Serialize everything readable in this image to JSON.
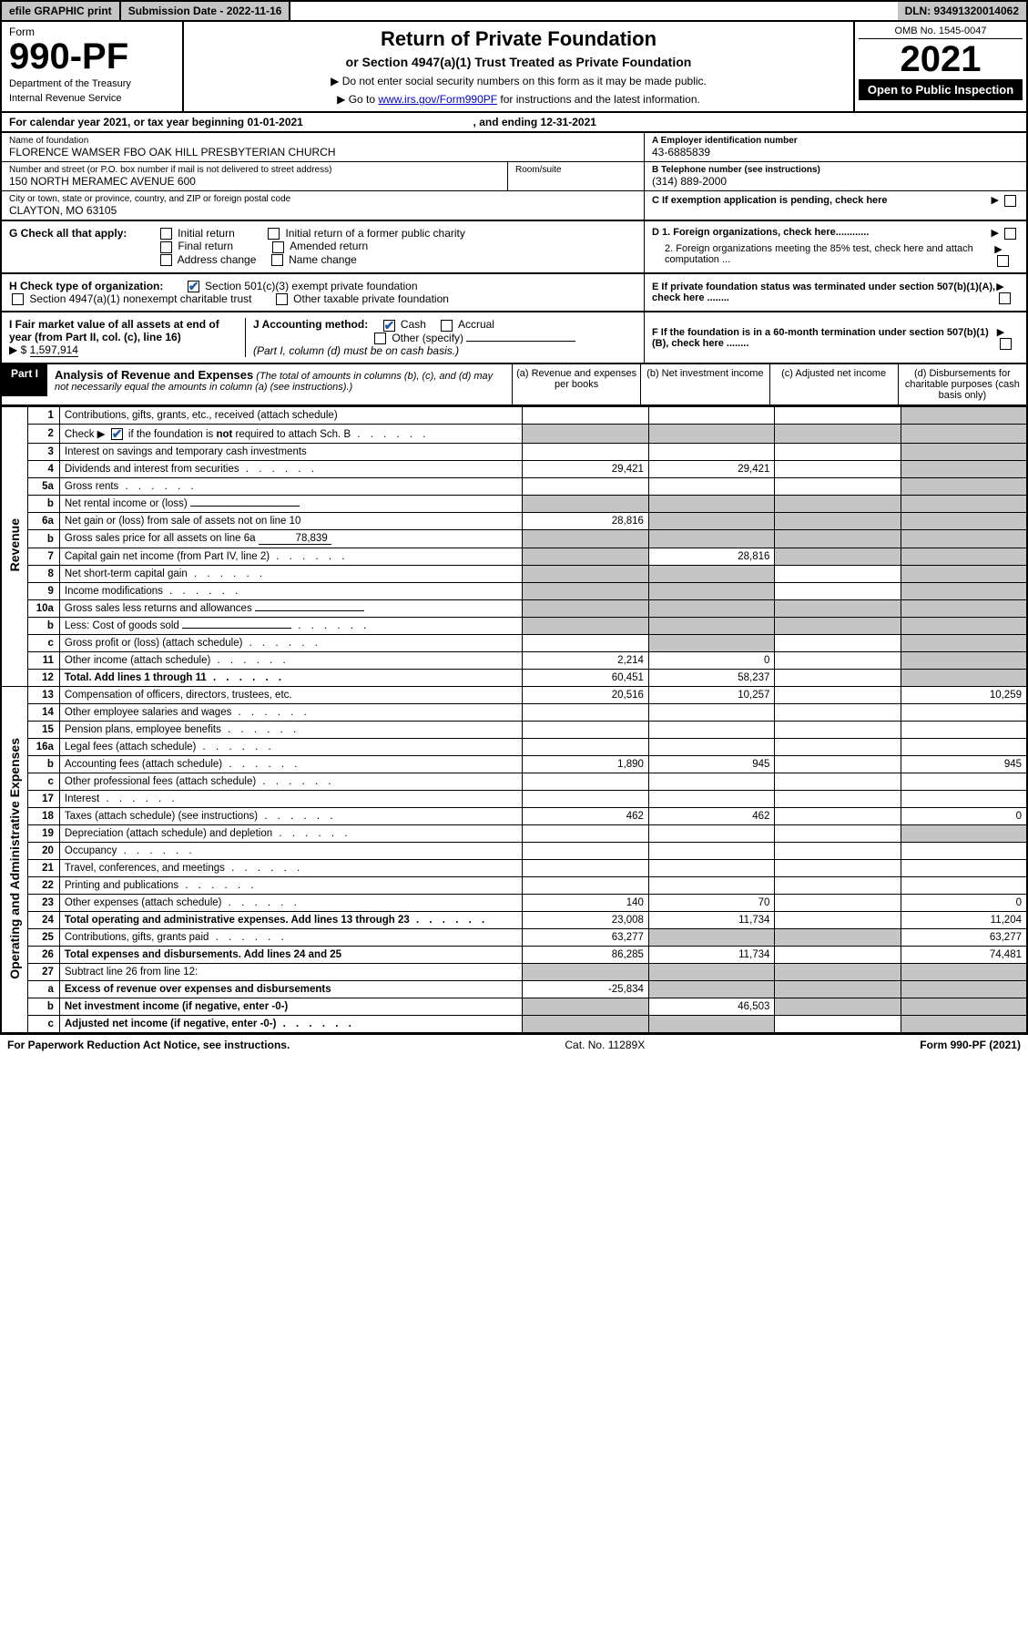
{
  "topbar": {
    "efile": "efile GRAPHIC print",
    "subdate_label": "Submission Date - 2022-11-16",
    "dln": "DLN: 93491320014062"
  },
  "header": {
    "form_prefix": "Form",
    "form_number": "990-PF",
    "dept1": "Department of the Treasury",
    "dept2": "Internal Revenue Service",
    "title": "Return of Private Foundation",
    "subtitle": "or Section 4947(a)(1) Trust Treated as Private Foundation",
    "instr1": "▶ Do not enter social security numbers on this form as it may be made public.",
    "instr2_pre": "▶ Go to ",
    "instr2_link": "www.irs.gov/Form990PF",
    "instr2_post": " for instructions and the latest information.",
    "omb": "OMB No. 1545-0047",
    "year": "2021",
    "open_public": "Open to Public Inspection"
  },
  "caly": {
    "pre": "For calendar year 2021, or tax year beginning ",
    "begin": "01-01-2021",
    "mid": ", and ending ",
    "end": "12-31-2021"
  },
  "info": {
    "name_lbl": "Name of foundation",
    "name_val": "FLORENCE WAMSER FBO OAK HILL PRESBYTERIAN CHURCH",
    "addr_lbl": "Number and street (or P.O. box number if mail is not delivered to street address)",
    "addr_val": "150 NORTH MERAMEC AVENUE 600",
    "room_lbl": "Room/suite",
    "city_lbl": "City or town, state or province, country, and ZIP or foreign postal code",
    "city_val": "CLAYTON, MO  63105",
    "ein_lbl": "A Employer identification number",
    "ein_val": "43-6885839",
    "tel_lbl": "B Telephone number (see instructions)",
    "tel_val": "(314) 889-2000",
    "c_lbl": "C If exemption application is pending, check here"
  },
  "g": {
    "lbl": "G Check all that apply:",
    "opts": [
      "Initial return",
      "Final return",
      "Address change",
      "Initial return of a former public charity",
      "Amended return",
      "Name change"
    ]
  },
  "h": {
    "lbl": "H Check type of organization:",
    "opt1": "Section 501(c)(3) exempt private foundation",
    "opt2": "Section 4947(a)(1) nonexempt charitable trust",
    "opt3": "Other taxable private foundation"
  },
  "i": {
    "lbl": "I Fair market value of all assets at end of year (from Part II, col. (c), line 16)",
    "arrow": "▶ $",
    "val": "1,597,914"
  },
  "j": {
    "lbl": "J Accounting method:",
    "cash": "Cash",
    "accrual": "Accrual",
    "other": "Other (specify)",
    "note": "(Part I, column (d) must be on cash basis.)"
  },
  "d": {
    "d1": "D 1. Foreign organizations, check here............",
    "d2": "2. Foreign organizations meeting the 85% test, check here and attach computation ..."
  },
  "e": {
    "lbl": "E  If private foundation status was terminated under section 507(b)(1)(A), check here ........"
  },
  "f": {
    "lbl": "F  If the foundation is in a 60-month termination under section 507(b)(1)(B), check here ........"
  },
  "part1": {
    "label": "Part I",
    "title": "Analysis of Revenue and Expenses",
    "note": "(The total of amounts in columns (b), (c), and (d) may not necessarily equal the amounts in column (a) (see instructions).)",
    "cols": {
      "a": "(a)  Revenue and expenses per books",
      "b": "(b)  Net investment income",
      "c": "(c)  Adjusted net income",
      "d": "(d)  Disbursements for charitable purposes (cash basis only)"
    }
  },
  "sides": {
    "revenue": "Revenue",
    "opex": "Operating and Administrative Expenses"
  },
  "rows": [
    {
      "ln": "1",
      "desc": "Contributions, gifts, grants, etc., received (attach schedule)",
      "a": "",
      "b": "",
      "c": "",
      "d": "",
      "dgrey": true
    },
    {
      "ln": "2",
      "desc": "Check ▶ ☑ if the foundation is not required to attach Sch. B",
      "dots": true,
      "a": "",
      "b": "",
      "c": "",
      "d": "",
      "agrey": true,
      "bgrey": true,
      "cgrey": true,
      "dgrey": true,
      "checkblue": true
    },
    {
      "ln": "3",
      "desc": "Interest on savings and temporary cash investments",
      "a": "",
      "b": "",
      "c": "",
      "d": "",
      "dgrey": true
    },
    {
      "ln": "4",
      "desc": "Dividends and interest from securities",
      "dots": true,
      "a": "29,421",
      "b": "29,421",
      "c": "",
      "d": "",
      "dgrey": true
    },
    {
      "ln": "5a",
      "desc": "Gross rents",
      "dots": true,
      "a": "",
      "b": "",
      "c": "",
      "d": "",
      "dgrey": true
    },
    {
      "ln": "b",
      "desc": "Net rental income or (loss)",
      "inline_box": true,
      "a": "",
      "b": "",
      "c": "",
      "d": "",
      "agrey": true,
      "bgrey": true,
      "cgrey": true,
      "dgrey": true
    },
    {
      "ln": "6a",
      "desc": "Net gain or (loss) from sale of assets not on line 10",
      "a": "28,816",
      "b": "",
      "c": "",
      "d": "",
      "bgrey": true,
      "cgrey": true,
      "dgrey": true
    },
    {
      "ln": "b",
      "desc": "Gross sales price for all assets on line 6a",
      "inline_val": "78,839",
      "a": "",
      "b": "",
      "c": "",
      "d": "",
      "agrey": true,
      "bgrey": true,
      "cgrey": true,
      "dgrey": true
    },
    {
      "ln": "7",
      "desc": "Capital gain net income (from Part IV, line 2)",
      "dots": true,
      "a": "",
      "b": "28,816",
      "c": "",
      "d": "",
      "agrey": true,
      "cgrey": true,
      "dgrey": true
    },
    {
      "ln": "8",
      "desc": "Net short-term capital gain",
      "dots": true,
      "a": "",
      "b": "",
      "c": "",
      "d": "",
      "agrey": true,
      "bgrey": true,
      "dgrey": true
    },
    {
      "ln": "9",
      "desc": "Income modifications",
      "dots": true,
      "a": "",
      "b": "",
      "c": "",
      "d": "",
      "agrey": true,
      "bgrey": true,
      "dgrey": true
    },
    {
      "ln": "10a",
      "desc": "Gross sales less returns and allowances",
      "inline_box": true,
      "a": "",
      "b": "",
      "c": "",
      "d": "",
      "agrey": true,
      "bgrey": true,
      "cgrey": true,
      "dgrey": true
    },
    {
      "ln": "b",
      "desc": "Less: Cost of goods sold",
      "dots": true,
      "inline_box": true,
      "a": "",
      "b": "",
      "c": "",
      "d": "",
      "agrey": true,
      "bgrey": true,
      "cgrey": true,
      "dgrey": true
    },
    {
      "ln": "c",
      "desc": "Gross profit or (loss) (attach schedule)",
      "dots": true,
      "a": "",
      "b": "",
      "c": "",
      "d": "",
      "bgrey": true,
      "dgrey": true
    },
    {
      "ln": "11",
      "desc": "Other income (attach schedule)",
      "dots": true,
      "a": "2,214",
      "b": "0",
      "c": "",
      "d": "",
      "dgrey": true
    },
    {
      "ln": "12",
      "desc": "Total. Add lines 1 through 11",
      "dots": true,
      "bold": true,
      "a": "60,451",
      "b": "58,237",
      "c": "",
      "d": "",
      "dgrey": true
    },
    {
      "ln": "13",
      "desc": "Compensation of officers, directors, trustees, etc.",
      "a": "20,516",
      "b": "10,257",
      "c": "",
      "d": "10,259"
    },
    {
      "ln": "14",
      "desc": "Other employee salaries and wages",
      "dots": true,
      "a": "",
      "b": "",
      "c": "",
      "d": ""
    },
    {
      "ln": "15",
      "desc": "Pension plans, employee benefits",
      "dots": true,
      "a": "",
      "b": "",
      "c": "",
      "d": ""
    },
    {
      "ln": "16a",
      "desc": "Legal fees (attach schedule)",
      "dots": true,
      "a": "",
      "b": "",
      "c": "",
      "d": ""
    },
    {
      "ln": "b",
      "desc": "Accounting fees (attach schedule)",
      "dots": true,
      "a": "1,890",
      "b": "945",
      "c": "",
      "d": "945"
    },
    {
      "ln": "c",
      "desc": "Other professional fees (attach schedule)",
      "dots": true,
      "a": "",
      "b": "",
      "c": "",
      "d": ""
    },
    {
      "ln": "17",
      "desc": "Interest",
      "dots": true,
      "a": "",
      "b": "",
      "c": "",
      "d": ""
    },
    {
      "ln": "18",
      "desc": "Taxes (attach schedule) (see instructions)",
      "dots": true,
      "a": "462",
      "b": "462",
      "c": "",
      "d": "0"
    },
    {
      "ln": "19",
      "desc": "Depreciation (attach schedule) and depletion",
      "dots": true,
      "a": "",
      "b": "",
      "c": "",
      "d": "",
      "dgrey": true
    },
    {
      "ln": "20",
      "desc": "Occupancy",
      "dots": true,
      "a": "",
      "b": "",
      "c": "",
      "d": ""
    },
    {
      "ln": "21",
      "desc": "Travel, conferences, and meetings",
      "dots": true,
      "a": "",
      "b": "",
      "c": "",
      "d": ""
    },
    {
      "ln": "22",
      "desc": "Printing and publications",
      "dots": true,
      "a": "",
      "b": "",
      "c": "",
      "d": ""
    },
    {
      "ln": "23",
      "desc": "Other expenses (attach schedule)",
      "dots": true,
      "a": "140",
      "b": "70",
      "c": "",
      "d": "0"
    },
    {
      "ln": "24",
      "desc": "Total operating and administrative expenses. Add lines 13 through 23",
      "dots": true,
      "bold": true,
      "a": "23,008",
      "b": "11,734",
      "c": "",
      "d": "11,204"
    },
    {
      "ln": "25",
      "desc": "Contributions, gifts, grants paid",
      "dots": true,
      "a": "63,277",
      "b": "",
      "c": "",
      "d": "63,277",
      "bgrey": true,
      "cgrey": true
    },
    {
      "ln": "26",
      "desc": "Total expenses and disbursements. Add lines 24 and 25",
      "bold": true,
      "a": "86,285",
      "b": "11,734",
      "c": "",
      "d": "74,481"
    },
    {
      "ln": "27",
      "desc": "Subtract line 26 from line 12:",
      "a": "",
      "b": "",
      "c": "",
      "d": "",
      "agrey": true,
      "bgrey": true,
      "cgrey": true,
      "dgrey": true
    },
    {
      "ln": "a",
      "desc": "Excess of revenue over expenses and disbursements",
      "bold": true,
      "a": "-25,834",
      "b": "",
      "c": "",
      "d": "",
      "bgrey": true,
      "cgrey": true,
      "dgrey": true
    },
    {
      "ln": "b",
      "desc": "Net investment income (if negative, enter -0-)",
      "bold": true,
      "a": "",
      "b": "46,503",
      "c": "",
      "d": "",
      "agrey": true,
      "cgrey": true,
      "dgrey": true
    },
    {
      "ln": "c",
      "desc": "Adjusted net income (if negative, enter -0-)",
      "dots": true,
      "bold": true,
      "a": "",
      "b": "",
      "c": "",
      "d": "",
      "agrey": true,
      "bgrey": true,
      "dgrey": true
    }
  ],
  "footer": {
    "left": "For Paperwork Reduction Act Notice, see instructions.",
    "cat": "Cat. No. 11289X",
    "right": "Form 990-PF (2021)"
  },
  "colors": {
    "grey_bg": "#c5c5c5",
    "link": "#0000cc",
    "check_green": "#2a7a2a",
    "check_blue": "#1a5aa8"
  }
}
